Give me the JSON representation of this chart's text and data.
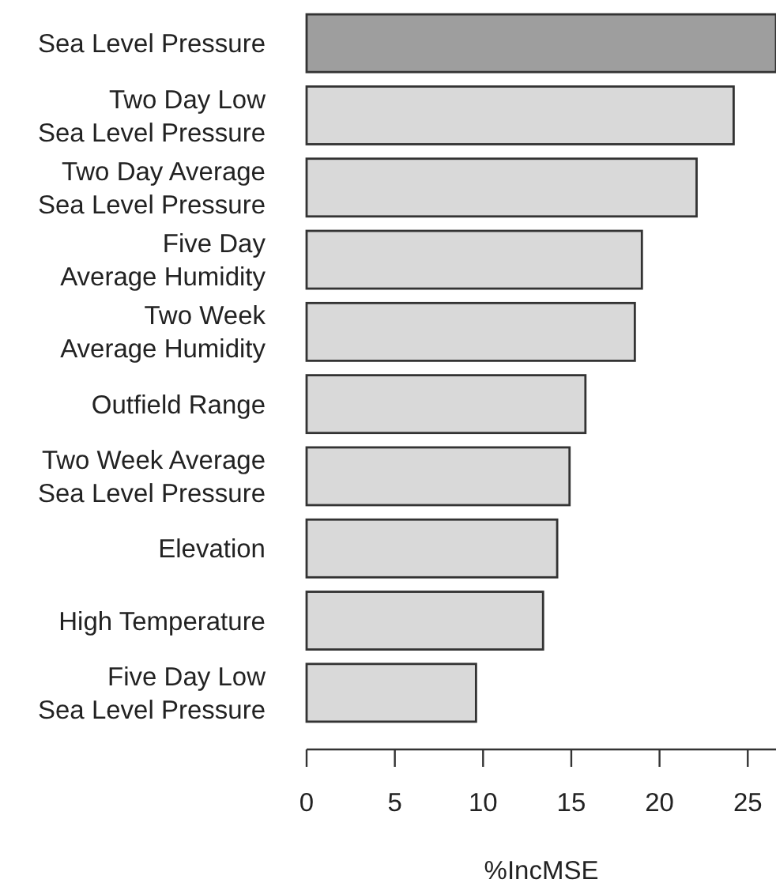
{
  "chart_data": {
    "type": "bar",
    "orientation": "horizontal",
    "categories": [
      "Sea Level Pressure",
      "Two Day Low\nSea Level Pressure",
      "Two Day Average\nSea Level Pressure",
      "Five Day\nAverage Humidity",
      "Two Week\nAverage Humidity",
      "Outfield Range",
      "Two Week Average\nSea Level Pressure",
      "Elevation",
      "High Temperature",
      "Five Day Low\nSea Level Pressure"
    ],
    "values": [
      26.6,
      24.2,
      22.1,
      19.0,
      18.6,
      15.8,
      14.9,
      14.2,
      13.4,
      9.6
    ],
    "colors": [
      "#9e9e9e",
      "#d9d9d9",
      "#d9d9d9",
      "#d9d9d9",
      "#d9d9d9",
      "#d9d9d9",
      "#d9d9d9",
      "#d9d9d9",
      "#d9d9d9",
      "#d9d9d9"
    ],
    "xlim": [
      0,
      26.6
    ],
    "xticks": [
      0,
      5,
      10,
      15,
      20,
      25
    ],
    "xlabel": "%IncMSE"
  }
}
